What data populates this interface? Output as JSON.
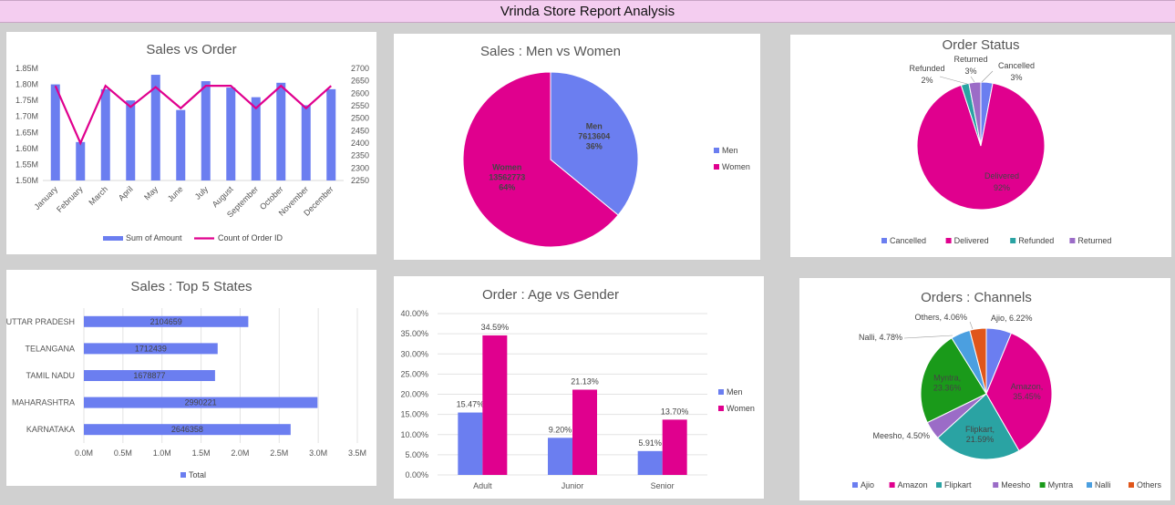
{
  "report_title": "Vrinda Store Report Analysis",
  "colors": {
    "blue": "#6b7ef0",
    "pink": "#e0008e",
    "teal": "#2aa3a3",
    "purple": "#9b6cc7",
    "green": "#1a9a1a",
    "sky": "#4b9fe0",
    "orange": "#e0561a"
  },
  "chart_data": [
    {
      "id": "sales_vs_order",
      "type": "bar",
      "title": "Sales vs Order",
      "categories": [
        "January",
        "February",
        "March",
        "April",
        "May",
        "June",
        "July",
        "August",
        "September",
        "October",
        "November",
        "December"
      ],
      "series": [
        {
          "name": "Sum of Amount",
          "type": "bar",
          "axis": "left",
          "values": [
            1800000,
            1620000,
            1785000,
            1750000,
            1830000,
            1720000,
            1810000,
            1790000,
            1760000,
            1805000,
            1735000,
            1785000
          ]
        },
        {
          "name": "Count of Order ID",
          "type": "line",
          "axis": "right",
          "values": [
            2630,
            2400,
            2630,
            2545,
            2625,
            2540,
            2630,
            2630,
            2540,
            2630,
            2540,
            2630
          ]
        }
      ],
      "y_left": {
        "min": 1500000,
        "max": 1850000,
        "ticks": [
          "1.50M",
          "1.55M",
          "1.60M",
          "1.65M",
          "1.70M",
          "1.75M",
          "1.80M",
          "1.85M"
        ]
      },
      "y_right": {
        "min": 2250,
        "max": 2700,
        "ticks": [
          "2250",
          "2300",
          "2350",
          "2400",
          "2450",
          "2500",
          "2550",
          "2600",
          "2650",
          "2700"
        ]
      },
      "legend_position": "bottom"
    },
    {
      "id": "sales_men_women",
      "type": "pie",
      "title": "Sales : Men vs Women",
      "slices": [
        {
          "name": "Men",
          "value": 7613604,
          "label": "7613604",
          "percent": "36%"
        },
        {
          "name": "Women",
          "value": 13562773,
          "label": "13562773",
          "percent": "64%"
        }
      ],
      "legend_position": "right"
    },
    {
      "id": "order_status",
      "type": "pie",
      "title": "Order Status",
      "slices": [
        {
          "name": "Cancelled",
          "value": 3,
          "percent": "3%"
        },
        {
          "name": "Delivered",
          "value": 92,
          "percent": "92%"
        },
        {
          "name": "Refunded",
          "value": 2,
          "percent": "2%"
        },
        {
          "name": "Returned",
          "value": 3,
          "percent": "3%"
        }
      ],
      "legend_position": "bottom"
    },
    {
      "id": "top_states",
      "type": "bar",
      "orientation": "horizontal",
      "title": "Sales : Top 5 States",
      "categories": [
        "UTTAR PRADESH",
        "TELANGANA",
        "TAMIL NADU",
        "MAHARASHTRA",
        "KARNATAKA"
      ],
      "series": [
        {
          "name": "Total",
          "values": [
            2104659,
            1712439,
            1678877,
            2990221,
            2646358
          ]
        }
      ],
      "value_labels": [
        "2104659",
        "1712439",
        "1678877",
        "2990221",
        "2646358"
      ],
      "x_axis": {
        "min": 0,
        "max": 3500000,
        "ticks": [
          "0.0M",
          "0.5M",
          "1.0M",
          "1.5M",
          "2.0M",
          "2.5M",
          "3.0M",
          "3.5M"
        ]
      },
      "legend_position": "bottom"
    },
    {
      "id": "age_gender",
      "type": "bar",
      "title": "Order : Age vs Gender",
      "categories": [
        "Adult",
        "Junior",
        "Senior"
      ],
      "series": [
        {
          "name": "Men",
          "values": [
            15.47,
            9.2,
            5.91
          ],
          "labels": [
            "15.47%",
            "9.20%",
            "5.91%"
          ]
        },
        {
          "name": "Women",
          "values": [
            34.59,
            21.13,
            13.7
          ],
          "labels": [
            "34.59%",
            "21.13%",
            "13.70%"
          ]
        }
      ],
      "y_axis": {
        "min": 0,
        "max": 40,
        "ticks": [
          "0.00%",
          "5.00%",
          "10.00%",
          "15.00%",
          "20.00%",
          "25.00%",
          "30.00%",
          "35.00%",
          "40.00%"
        ]
      },
      "legend_position": "right"
    },
    {
      "id": "channels",
      "type": "pie",
      "title": "Orders : Channels",
      "slices": [
        {
          "name": "Ajio",
          "value": 6.22,
          "label": "Ajio, 6.22%"
        },
        {
          "name": "Amazon",
          "value": 35.45,
          "label": "Amazon, 35.45%"
        },
        {
          "name": "Flipkart",
          "value": 21.59,
          "label": "Flipkart, 21.59%"
        },
        {
          "name": "Meesho",
          "value": 4.5,
          "label": "Meesho, 4.50%"
        },
        {
          "name": "Myntra",
          "value": 23.36,
          "label": "Myntra, 23.36%"
        },
        {
          "name": "Nalli",
          "value": 4.78,
          "label": "Nalli, 4.78%"
        },
        {
          "name": "Others",
          "value": 4.06,
          "label": "Others, 4.06%"
        }
      ],
      "legend_position": "bottom"
    }
  ]
}
